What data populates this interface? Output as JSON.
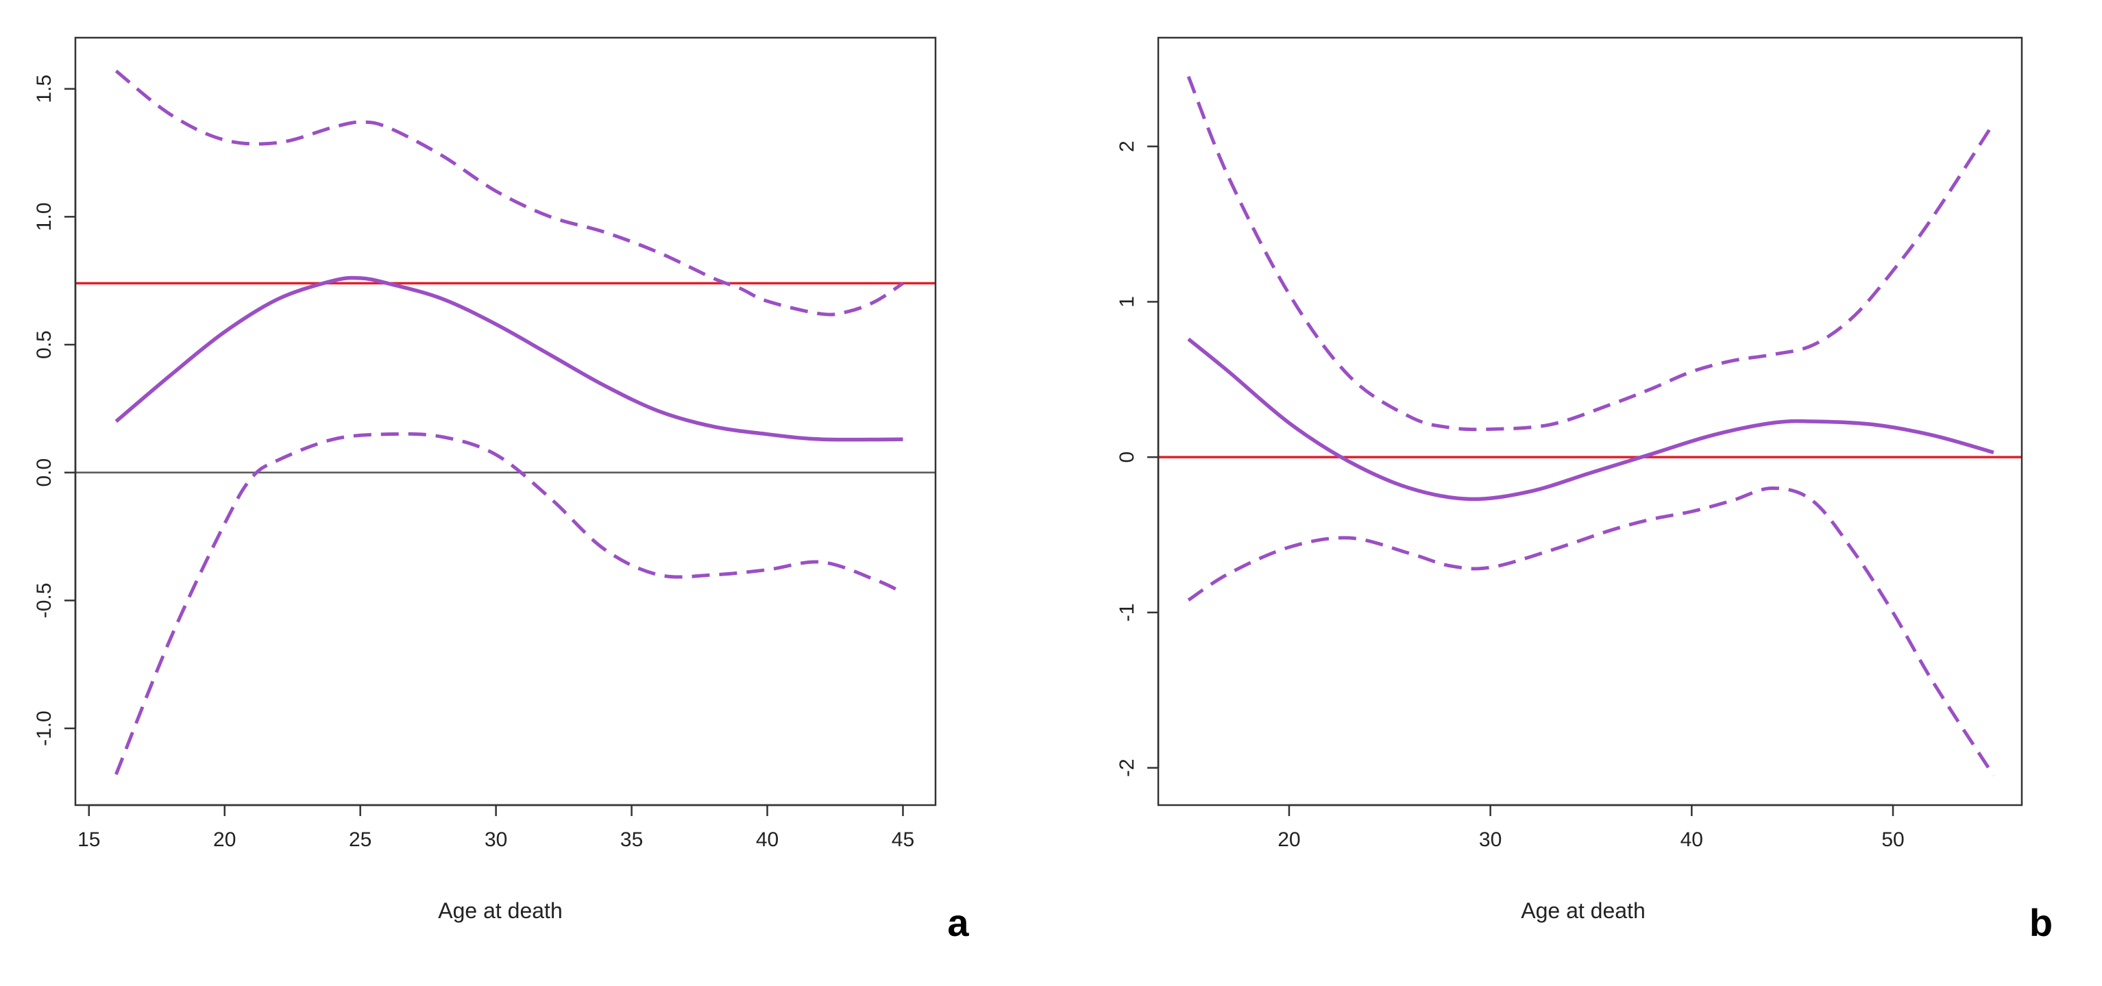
{
  "chart_data": [
    {
      "type": "line",
      "panel_label": "a",
      "xlabel": "Age at death",
      "ylabel": "",
      "xlim": [
        14.5,
        46.2
      ],
      "ylim": [
        -1.3,
        1.7
      ],
      "x_ticks": [
        15,
        20,
        25,
        30,
        35,
        40,
        45
      ],
      "x_tick_labels": [
        "15",
        "20",
        "25",
        "30",
        "35",
        "40",
        "45"
      ],
      "y_ticks": [
        -1.0,
        -0.5,
        0.0,
        0.5,
        1.0,
        1.5
      ],
      "y_tick_labels": [
        "-1.0",
        "-0.5",
        "0.0",
        "0.5",
        "1.0",
        "1.5"
      ],
      "reference_lines": [
        {
          "name": "red-reference",
          "y": 0.74,
          "color": "#e0202a",
          "style": "solid"
        },
        {
          "name": "zero-line",
          "y": 0.0,
          "color": "#555555",
          "style": "solid"
        }
      ],
      "series": [
        {
          "name": "estimate",
          "style": "solid",
          "color": "#9b4fc4",
          "x": [
            16,
            18,
            20,
            22,
            24,
            25,
            26,
            28,
            30,
            32,
            34,
            36,
            38,
            40,
            42,
            45
          ],
          "y": [
            0.2,
            0.38,
            0.55,
            0.68,
            0.75,
            0.76,
            0.74,
            0.68,
            0.58,
            0.46,
            0.34,
            0.24,
            0.18,
            0.15,
            0.13,
            0.13
          ]
        },
        {
          "name": "upper-95-ci",
          "style": "dashed",
          "color": "#9b4fc4",
          "x": [
            16,
            18,
            20,
            22,
            24,
            25,
            26,
            28,
            30,
            32,
            34,
            36,
            38,
            39,
            40,
            42,
            43,
            44,
            45
          ],
          "y": [
            1.57,
            1.4,
            1.3,
            1.29,
            1.35,
            1.37,
            1.35,
            1.24,
            1.1,
            1.0,
            0.94,
            0.86,
            0.76,
            0.72,
            0.67,
            0.62,
            0.63,
            0.67,
            0.74
          ]
        },
        {
          "name": "lower-95-ci",
          "style": "dashed",
          "color": "#9b4fc4",
          "x": [
            16,
            18,
            20,
            21,
            22,
            24,
            26,
            28,
            30,
            32,
            34,
            36,
            38,
            40,
            42,
            44,
            45
          ],
          "y": [
            -1.18,
            -0.65,
            -0.2,
            -0.02,
            0.05,
            0.13,
            0.15,
            0.14,
            0.07,
            -0.1,
            -0.3,
            -0.4,
            -0.4,
            -0.38,
            -0.35,
            -0.42,
            -0.47
          ]
        }
      ]
    },
    {
      "type": "line",
      "panel_label": "b",
      "xlabel": "Age at death",
      "ylabel": "",
      "xlim": [
        13.5,
        56.4
      ],
      "ylim": [
        -2.24,
        2.7
      ],
      "x_ticks": [
        20,
        30,
        40,
        50
      ],
      "x_tick_labels": [
        "20",
        "30",
        "40",
        "50"
      ],
      "y_ticks": [
        -2,
        -1,
        0,
        1,
        2
      ],
      "y_tick_labels": [
        "-2",
        "-1",
        "0",
        "1",
        "2"
      ],
      "reference_lines": [
        {
          "name": "red-reference",
          "y": 0.0,
          "color": "#e0202a",
          "style": "solid"
        }
      ],
      "series": [
        {
          "name": "estimate",
          "style": "solid",
          "color": "#9b4fc4",
          "x": [
            15,
            17,
            20,
            23,
            26,
            29,
            32,
            35,
            38,
            41,
            44,
            46,
            49,
            52,
            55
          ],
          "y": [
            0.76,
            0.55,
            0.22,
            -0.03,
            -0.2,
            -0.27,
            -0.22,
            -0.1,
            0.02,
            0.14,
            0.22,
            0.23,
            0.21,
            0.14,
            0.03
          ]
        },
        {
          "name": "upper-95-ci",
          "style": "dashed",
          "color": "#9b4fc4",
          "x": [
            15,
            17,
            20,
            23,
            26,
            28,
            30,
            33,
            36,
            38,
            40,
            42,
            44,
            46,
            48,
            50,
            52,
            55
          ],
          "y": [
            2.45,
            1.8,
            1.05,
            0.52,
            0.26,
            0.19,
            0.18,
            0.21,
            0.34,
            0.44,
            0.55,
            0.62,
            0.66,
            0.72,
            0.9,
            1.2,
            1.55,
            2.15
          ]
        },
        {
          "name": "lower-95-ci",
          "style": "dashed",
          "color": "#9b4fc4",
          "x": [
            15,
            17,
            20,
            23,
            26,
            28,
            30,
            33,
            36,
            38,
            40,
            42,
            44,
            46,
            48,
            50,
            52,
            55
          ],
          "y": [
            -0.92,
            -0.75,
            -0.58,
            -0.52,
            -0.62,
            -0.7,
            -0.71,
            -0.6,
            -0.47,
            -0.4,
            -0.35,
            -0.28,
            -0.2,
            -0.28,
            -0.6,
            -1.0,
            -1.45,
            -2.05
          ]
        }
      ]
    }
  ]
}
